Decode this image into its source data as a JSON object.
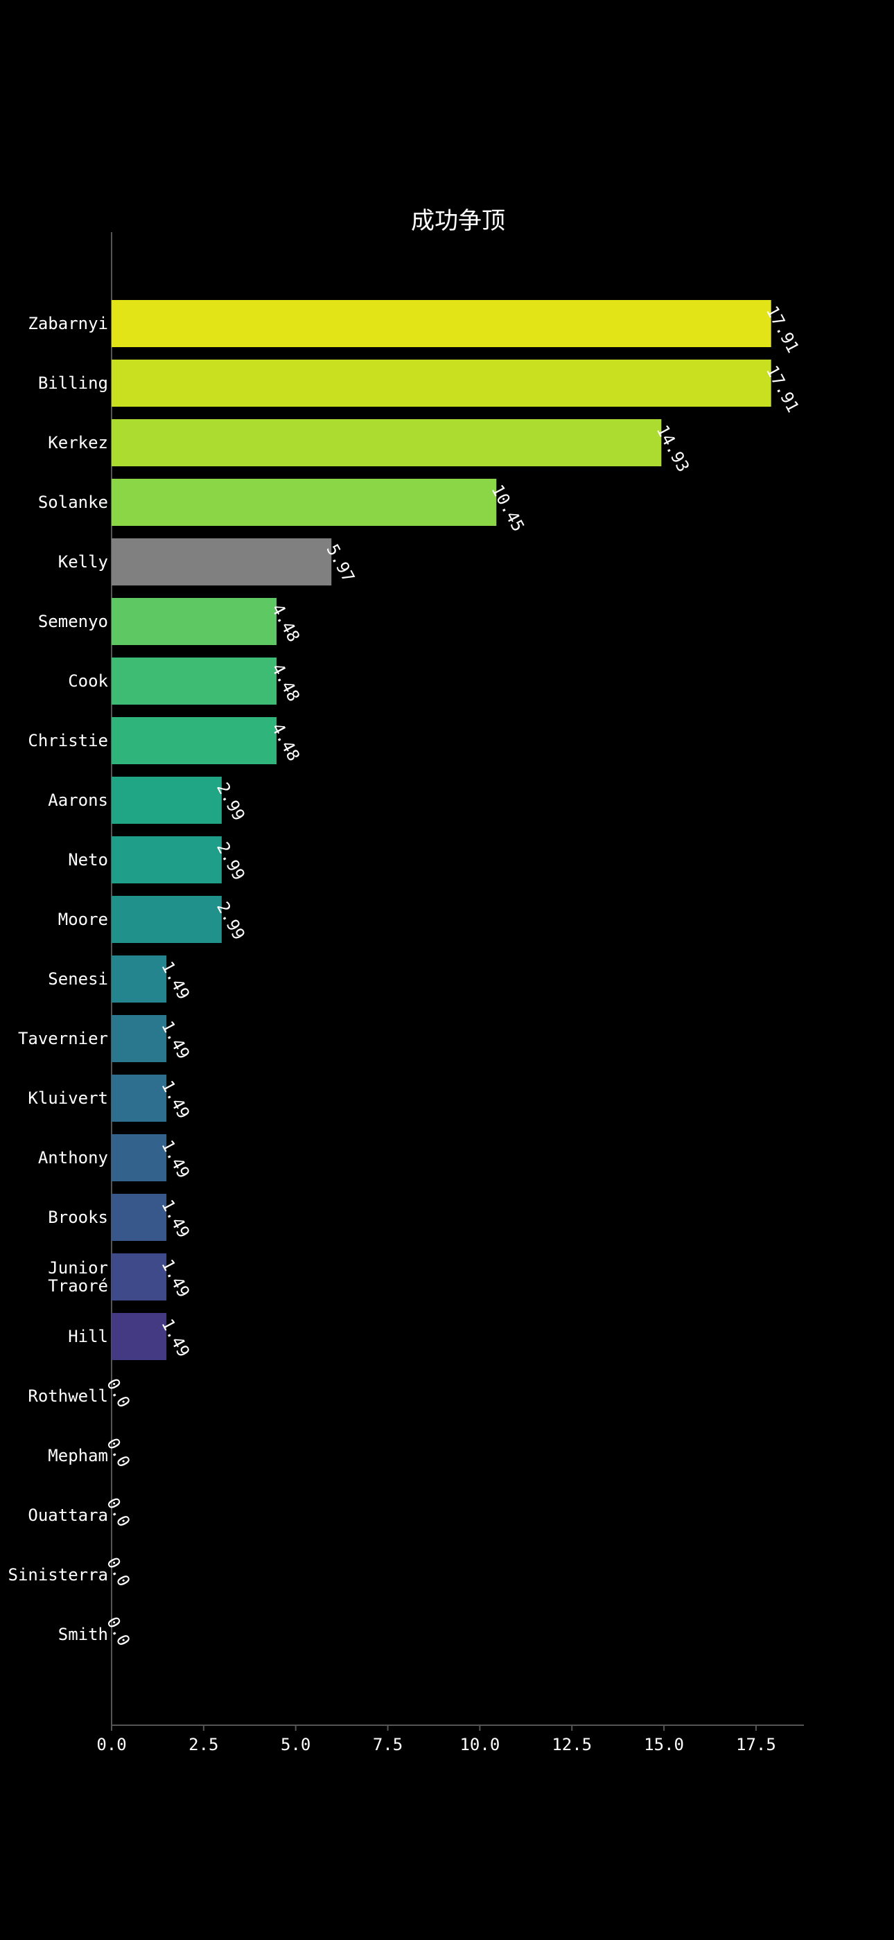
{
  "chart_data": {
    "type": "bar",
    "orientation": "horizontal",
    "title": "成功争顶",
    "xlabel": "",
    "ylabel": "",
    "xlim": [
      0,
      18.8
    ],
    "grid": false,
    "legend": "none",
    "x_ticks": [
      "0.0",
      "2.5",
      "5.0",
      "7.5",
      "10.0",
      "12.5",
      "15.0",
      "17.5"
    ],
    "x_tick_values": [
      0,
      2.5,
      5,
      7.5,
      10,
      12.5,
      15,
      17.5
    ],
    "categories": [
      "Zabarnyi",
      "Billing",
      "Kerkez",
      "Solanke",
      "Kelly",
      "Semenyo",
      "Cook",
      "Christie",
      "Aarons",
      "Neto",
      "Moore",
      "Senesi",
      "Tavernier",
      "Kluivert",
      "Anthony",
      "Brooks",
      "Junior\nTraoré",
      "Hill",
      "Rothwell",
      "Mepham",
      "Ouattara",
      "Sinisterra",
      "Smith"
    ],
    "values": [
      17.91,
      17.91,
      14.93,
      10.45,
      5.97,
      4.48,
      4.48,
      4.48,
      2.99,
      2.99,
      2.99,
      1.49,
      1.49,
      1.49,
      1.49,
      1.49,
      1.49,
      1.49,
      0.0,
      0.0,
      0.0,
      0.0,
      0.0
    ],
    "value_labels": [
      "17.91",
      "17.91",
      "14.93",
      "10.45",
      "5.97",
      "4.48",
      "4.48",
      "4.48",
      "2.99",
      "2.99",
      "2.99",
      "1.49",
      "1.49",
      "1.49",
      "1.49",
      "1.49",
      "1.49",
      "1.49",
      "0.0",
      "0.0",
      "0.0",
      "0.0",
      "0.0"
    ],
    "colors": [
      "#e3e418",
      "#c8e020",
      "#addc30",
      "#8bd646",
      "#808080",
      "#5ec962",
      "#3fbc73",
      "#2fb47c",
      "#21a685",
      "#1f9e89",
      "#21918c",
      "#25858e",
      "#2a788e",
      "#2e6e8e",
      "#33638d",
      "#38588c",
      "#3e4a89",
      "#443a83",
      "#472c7a",
      "#481f70",
      "#481467",
      "#471164",
      "#440154"
    ],
    "background": "#000000",
    "axis_color": "#555555",
    "text_color": "#ffffff"
  }
}
